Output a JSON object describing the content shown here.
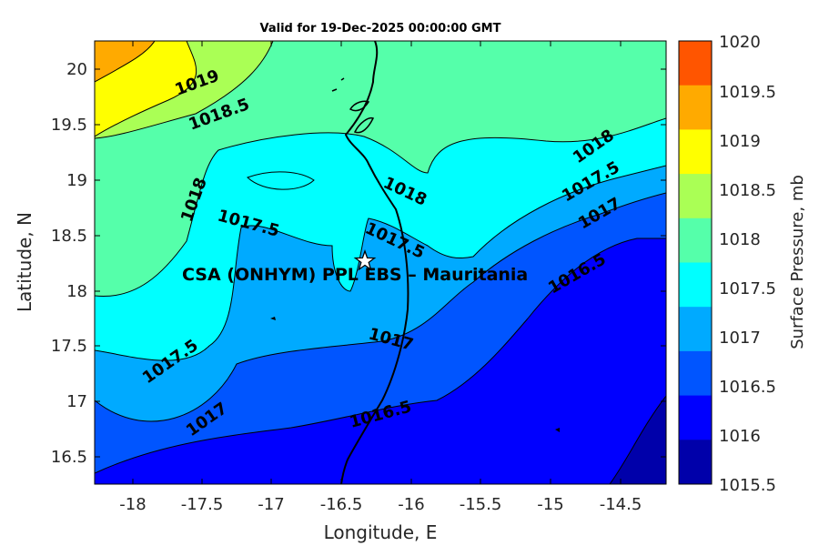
{
  "title": "Valid for 19-Dec-2025 00:00:00 GMT",
  "axes": {
    "xlabel": "Longitude, E",
    "ylabel": "Latitude, N",
    "xticks": [
      "-18",
      "-17.5",
      "-17",
      "-16.5",
      "-16",
      "-15.5",
      "-15",
      "-14.5"
    ],
    "yticks": [
      "20",
      "19.5",
      "19",
      "18.5",
      "18",
      "17.5",
      "17",
      "16.5"
    ]
  },
  "colorbar": {
    "label": "Surface Pressure, mb",
    "levels": [
      "1020",
      "1019.5",
      "1019",
      "1018.5",
      "1018",
      "1017.5",
      "1017",
      "1016.5",
      "1016",
      "1015.5"
    ],
    "colors": [
      "#ff5500",
      "#ffaa00",
      "#ffff00",
      "#aaff55",
      "#55ffaa",
      "#00ffff",
      "#00aaff",
      "#0055ff",
      "#0000ff",
      "#0000aa"
    ]
  },
  "site": {
    "label": "CSA (ONHYM) PPL EBS  – Mauritania",
    "marker": "star-icon"
  },
  "contour_labels": [
    "1019",
    "1018.5",
    "1018",
    "1018",
    "1018",
    "1017.5",
    "1017.5",
    "1017.5",
    "1017.5",
    "1017",
    "1017",
    "1017",
    "1016.5",
    "1016.5"
  ],
  "chart_data": {
    "type": "heatmap",
    "variable": "Surface Pressure",
    "units": "mb",
    "xlim": [
      -18.3,
      -14.2
    ],
    "ylim": [
      16.25,
      20.25
    ],
    "color_levels": [
      1015.5,
      1016,
      1016.5,
      1017,
      1017.5,
      1018,
      1018.5,
      1019,
      1019.5,
      1020
    ]
  }
}
